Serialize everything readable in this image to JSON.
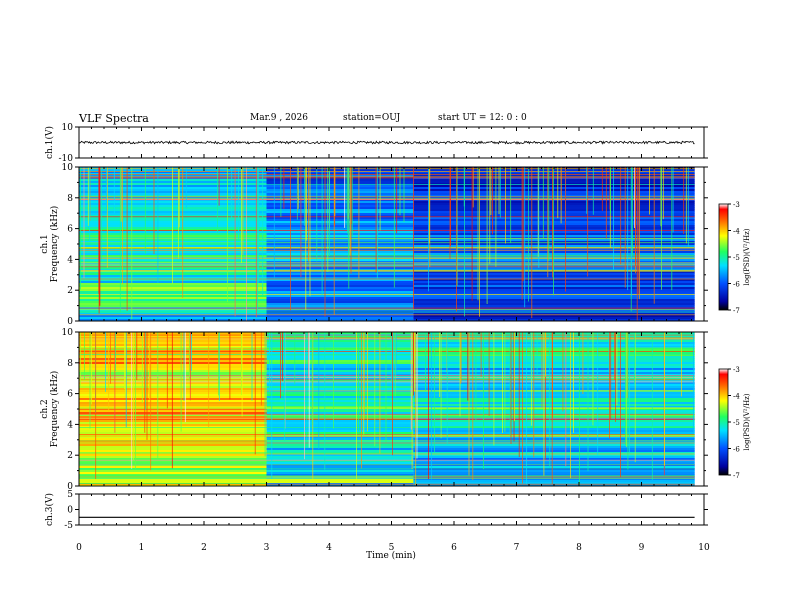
{
  "header": {
    "title": "VLF Spectra",
    "date": "Mar.9 , 2026",
    "station": "station=OUJ",
    "start": "start UT = 12: 0 : 0"
  },
  "chart_data": [
    {
      "type": "line",
      "panel": "ch1-waveform",
      "ylabel": "ch.1(V)",
      "ylim": [
        -10,
        10
      ],
      "yticks": [
        "10",
        "-10"
      ],
      "xlim": [
        0,
        10
      ],
      "series": [
        {
          "values_hint": "noise about 0 V"
        }
      ]
    },
    {
      "type": "heatmap",
      "panel": "ch1-spectrogram",
      "ylabel": "ch.1 Frequency (kHz)",
      "ylim": [
        0,
        10
      ],
      "yticks": [
        "0",
        "2",
        "4",
        "6",
        "8",
        "10"
      ],
      "xlim": [
        0,
        10
      ],
      "data_end_min": 9.85,
      "colorbar": {
        "label": "log(PSD)(V²/Hz)",
        "range": [
          -7,
          -3
        ],
        "ticks": [
          "-3",
          "-4",
          "-5",
          "-6",
          "-7"
        ]
      }
    },
    {
      "type": "heatmap",
      "panel": "ch2-spectrogram",
      "ylabel": "ch.2 Frequency (kHz)",
      "ylim": [
        0,
        10
      ],
      "yticks": [
        "0",
        "2",
        "4",
        "6",
        "8",
        "10"
      ],
      "xlim": [
        0,
        10
      ],
      "data_end_min": 9.85,
      "colorbar": {
        "label": "log(PSD)(V²/Hz)",
        "range": [
          -7,
          -3
        ],
        "ticks": [
          "-3",
          "-4",
          "-5",
          "-6",
          "-7"
        ]
      }
    },
    {
      "type": "line",
      "panel": "ch3-waveform",
      "ylabel": "ch.3(V)",
      "ylim": [
        -5,
        5
      ],
      "yticks": [
        "5",
        "0",
        "-5"
      ],
      "xlim": [
        0,
        10
      ],
      "series": [
        {
          "values_hint": "flat at -2.5 V"
        }
      ]
    }
  ],
  "x_axis": {
    "label": "Time (min)",
    "ticks": [
      "0",
      "1",
      "2",
      "3",
      "4",
      "5",
      "6",
      "7",
      "8",
      "9",
      "10"
    ]
  }
}
